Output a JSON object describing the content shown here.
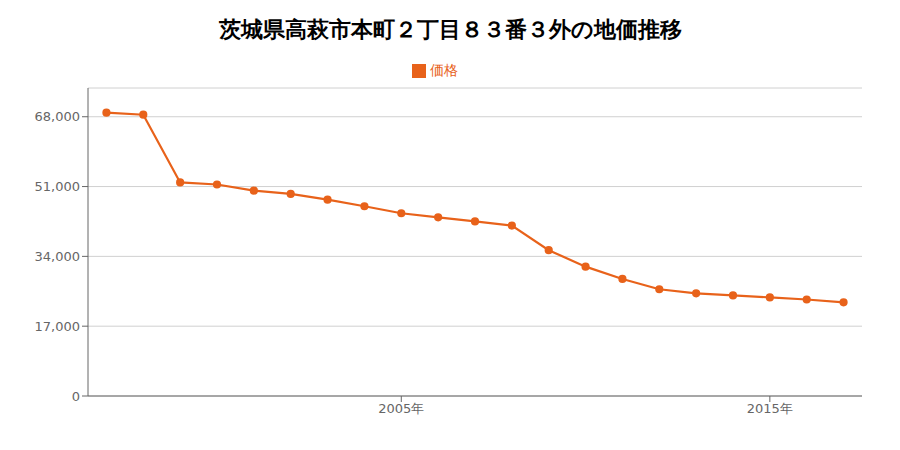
{
  "chart_data": {
    "type": "line",
    "title": "茨城県高萩市本町２丁目８３番３外の地価推移",
    "x": [
      1997,
      1998,
      1999,
      2000,
      2001,
      2002,
      2003,
      2004,
      2005,
      2006,
      2007,
      2008,
      2009,
      2010,
      2011,
      2012,
      2013,
      2014,
      2015,
      2016,
      2017
    ],
    "series": [
      {
        "name": "価格",
        "color": "#e8621a",
        "marker": "circle",
        "values": [
          69000,
          68500,
          52000,
          51500,
          50000,
          49200,
          47800,
          46200,
          44500,
          43500,
          42500,
          41500,
          35500,
          31500,
          28500,
          26000,
          25000,
          24500,
          24000,
          23500,
          22800
        ]
      }
    ],
    "xlim": [
      1996.5,
      2017.5
    ],
    "xticks": [
      {
        "value": 2005,
        "label": "2005年"
      },
      {
        "value": 2015,
        "label": "2015年"
      }
    ],
    "ylim": [
      0,
      75000
    ],
    "yticks": [
      0,
      {
        "value": 17000,
        "label": "17,000"
      },
      {
        "value": 34000,
        "label": "34,000"
      },
      {
        "value": 51000,
        "label": "51,000"
      },
      {
        "value": 68000,
        "label": "68,000"
      }
    ],
    "grid": "y",
    "legend": "top"
  }
}
